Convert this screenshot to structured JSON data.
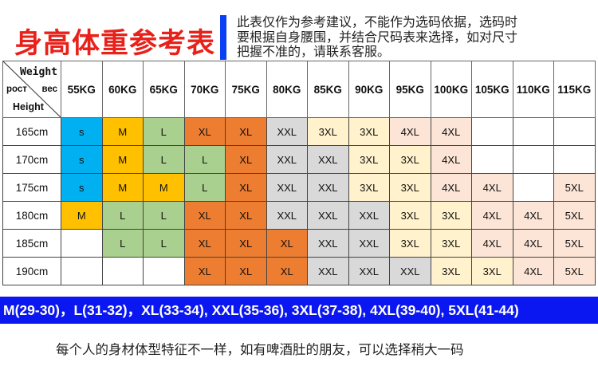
{
  "header": {
    "title": "身高体重参考表",
    "note_lines": [
      "此表仅作为参考建议，不能作为选码依据，选码时",
      "要根据自身腰围，并结合尺码表来选择，如对尺寸",
      "把握不准的，请联系客服。"
    ],
    "title_color": "#e8211a",
    "accent_bar_color": "#0a3ff5"
  },
  "table": {
    "corner": {
      "weight": "Weight",
      "rost": "рост",
      "ves": "вес",
      "height": "Height"
    },
    "columns": [
      "55KG",
      "60KG",
      "65KG",
      "70KG",
      "75KG",
      "80KG",
      "85KG",
      "90KG",
      "95KG",
      "100KG",
      "105KG",
      "110KG",
      "115KG"
    ],
    "rows": [
      {
        "height": "165cm",
        "cells": [
          "s",
          "M",
          "L",
          "XL",
          "XL",
          "XXL",
          "3XL",
          "3XL",
          "4XL",
          "4XL",
          "",
          "",
          ""
        ]
      },
      {
        "height": "170cm",
        "cells": [
          "s",
          "M",
          "L",
          "L",
          "XL",
          "XXL",
          "XXL",
          "3XL",
          "3XL",
          "4XL",
          "",
          "",
          ""
        ]
      },
      {
        "height": "175cm",
        "cells": [
          "s",
          "M",
          "M",
          "L",
          "XL",
          "XXL",
          "XXL",
          "3XL",
          "3XL",
          "4XL",
          "4XL",
          "",
          "5XL"
        ]
      },
      {
        "height": "180cm",
        "cells": [
          "M",
          "L",
          "L",
          "XL",
          "XL",
          "XXL",
          "XXL",
          "XXL",
          "3XL",
          "3XL",
          "4XL",
          "4XL",
          "5XL"
        ]
      },
      {
        "height": "185cm",
        "cells": [
          "",
          "L",
          "L",
          "XL",
          "XL",
          "XL",
          "XXL",
          "XXL",
          "3XL",
          "3XL",
          "4XL",
          "4XL",
          "5XL"
        ]
      },
      {
        "height": "190cm",
        "cells": [
          "",
          "",
          "",
          "XL",
          "XL",
          "XL",
          "XXL",
          "XXL",
          "XXL",
          "3XL",
          "3XL",
          "4XL",
          "5XL"
        ]
      }
    ],
    "size_colors": {
      "s": "#00b0f0",
      "M": "#ffc000",
      "L": "#a9d08e",
      "XL": "#ed7d31",
      "XXL": "#d9d9d9",
      "3XL": "#fff2cc",
      "4XL": "#fce4d6",
      "5XL": "#fce4d6",
      "": "#ffffff"
    }
  },
  "waist_legend": {
    "text": "M(29-30)，L(31-32)，XL(33-34),  XXL(35-36),  3XL(37-38),  4XL(39-40),  5XL(41-44)",
    "background": "#0a17f0"
  },
  "footer_tip": "每个人的身材体型特征不一样，如有啤酒肚的朋友，可以选择稍大一码"
}
